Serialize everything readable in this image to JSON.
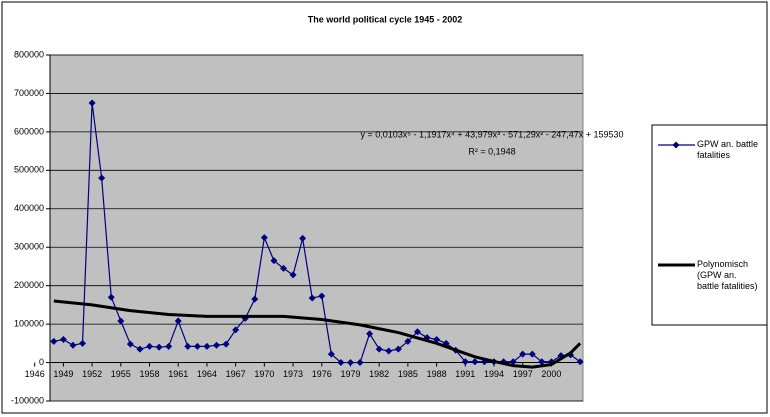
{
  "chart_data": {
    "type": "line",
    "title": "The world political cycle 1945 - 2002",
    "xlim": [
      1947.6,
      2003.3
    ],
    "xticks": [
      1946,
      1949,
      1952,
      1955,
      1958,
      1961,
      1964,
      1967,
      1970,
      1973,
      1976,
      1979,
      1982,
      1985,
      1988,
      1991,
      1994,
      1997,
      2000
    ],
    "ylim": [
      -100000,
      800000
    ],
    "yticks": [
      -100000,
      0,
      100000,
      200000,
      300000,
      400000,
      500000,
      600000,
      700000,
      800000
    ],
    "grid": true,
    "legend": "right",
    "annotations": [
      "y = 0,0103x⁵ - 1,1917x⁴ + 43,979x³ - 571,29x² - 247,47x + 159530",
      "R² = 0,1948"
    ],
    "series": [
      {
        "name": "GPW an. battle fatalities",
        "color": "#000080",
        "markers": true,
        "x": [
          1948,
          1949,
          1950,
          1951,
          1952,
          1953,
          1954,
          1955,
          1956,
          1957,
          1958,
          1959,
          1960,
          1961,
          1962,
          1963,
          1964,
          1965,
          1966,
          1967,
          1968,
          1969,
          1970,
          1971,
          1972,
          1973,
          1974,
          1975,
          1976,
          1977,
          1978,
          1979,
          1980,
          1981,
          1982,
          1983,
          1984,
          1985,
          1986,
          1987,
          1988,
          1989,
          1990,
          1991,
          1992,
          1993,
          1994,
          1995,
          1996,
          1997,
          1998,
          1999,
          2000,
          2001,
          2002,
          2003
        ],
        "values": [
          55000,
          60000,
          45000,
          50000,
          675000,
          480000,
          170000,
          108000,
          48000,
          35000,
          42000,
          40000,
          42000,
          108000,
          42000,
          42000,
          42000,
          45000,
          48000,
          85000,
          115000,
          165000,
          325000,
          265000,
          245000,
          228000,
          323000,
          168000,
          173000,
          22000,
          0,
          0,
          0,
          75000,
          35000,
          30000,
          35000,
          55000,
          80000,
          65000,
          60000,
          50000,
          32000,
          2000,
          2000,
          2000,
          2000,
          2000,
          2000,
          22000,
          22000,
          2000,
          2000,
          18000,
          20000,
          2000
        ]
      },
      {
        "name": "Polynomisch (GPW an. battle fatalities)",
        "color": "#000000",
        "markers": false,
        "x": [
          1948,
          1952,
          1956,
          1960,
          1964,
          1968,
          1972,
          1976,
          1980,
          1984,
          1988,
          1992,
          1994,
          1996,
          1998,
          2000,
          2002,
          2003
        ],
        "values": [
          160000,
          150000,
          135000,
          125000,
          120000,
          120000,
          120000,
          112000,
          98000,
          78000,
          50000,
          15000,
          3000,
          -8000,
          -12000,
          -5000,
          25000,
          50000
        ]
      }
    ]
  }
}
